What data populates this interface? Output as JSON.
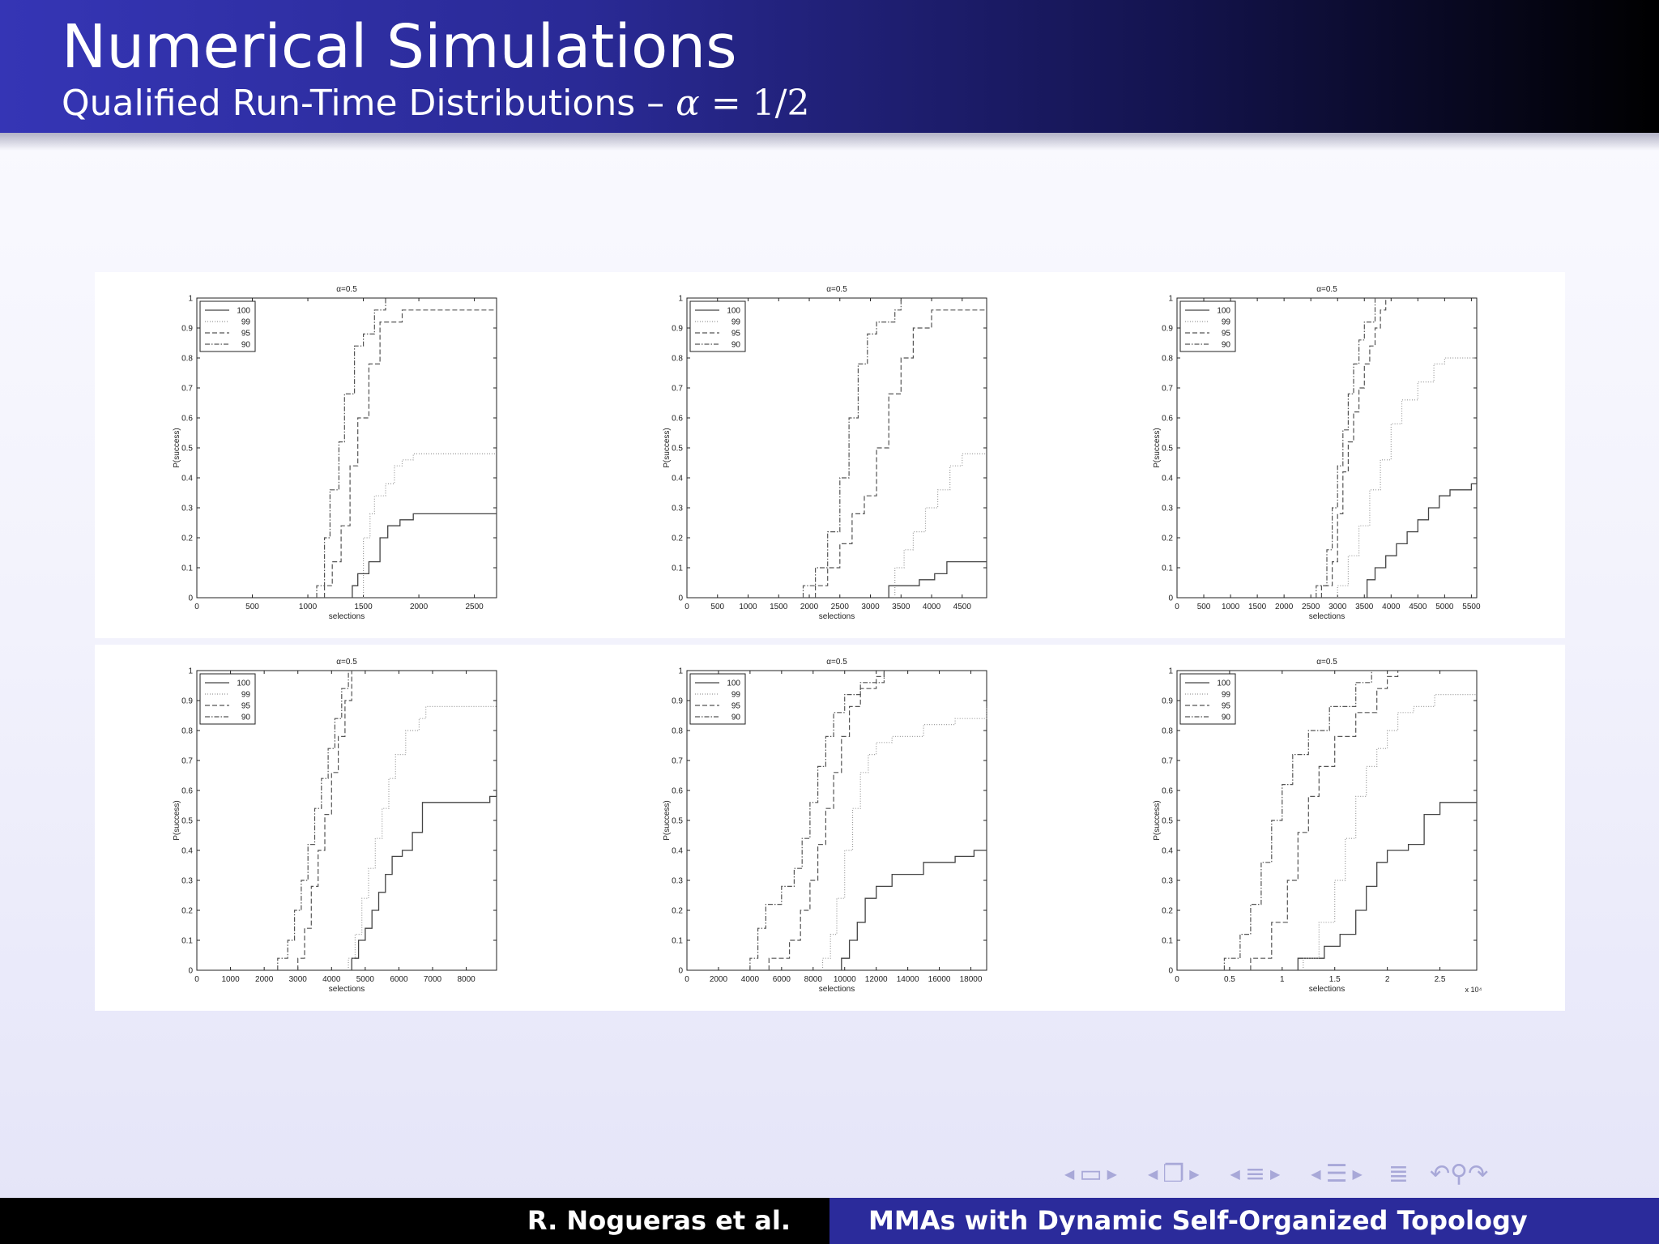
{
  "header": {
    "title": "Numerical Simulations",
    "subtitle_text": "Qualified Run-Time Distributions – ",
    "subtitle_math_symbol": "α",
    "subtitle_math_rest": " = 1/2"
  },
  "footer": {
    "author": "R. Nogueras et al.",
    "talk_title": "MMAs with Dynamic Self-Organized Topology"
  },
  "nav": {
    "icons": [
      "arrow-left-icon",
      "frame-icon",
      "arrow-right-icon",
      "arrow-left-icon",
      "subsection-icon",
      "arrow-right-icon",
      "arrow-left-icon",
      "section-icon",
      "arrow-right-icon",
      "arrow-left-icon",
      "presentation-icon",
      "arrow-right-icon",
      "menu-icon",
      "undo-icon",
      "search-icon",
      "redo-icon"
    ]
  },
  "chart_data": [
    {
      "type": "line",
      "title": "α=0.5",
      "xlabel": "selections",
      "ylabel": "P(success)",
      "xlim": [
        0,
        2700
      ],
      "ylim": [
        0,
        1
      ],
      "xticks": [
        0,
        500,
        1000,
        1500,
        2000,
        2500
      ],
      "yticks": [
        0,
        0.1,
        0.2,
        0.3,
        0.4,
        0.5,
        0.6,
        0.7,
        0.8,
        0.9,
        1
      ],
      "legend": "top-left",
      "grid": false,
      "series": [
        {
          "name": "100",
          "style": "solid",
          "x": [
            1400,
            1450,
            1550,
            1650,
            1720,
            1830,
            1950,
            2700
          ],
          "y": [
            0.04,
            0.08,
            0.12,
            0.2,
            0.24,
            0.26,
            0.28,
            0.28
          ]
        },
        {
          "name": "99",
          "style": "dotted",
          "x": [
            1500,
            1560,
            1600,
            1700,
            1780,
            1850,
            1950,
            2700
          ],
          "y": [
            0.2,
            0.28,
            0.34,
            0.38,
            0.44,
            0.46,
            0.48,
            0.48
          ]
        },
        {
          "name": "95",
          "style": "dashed",
          "x": [
            1150,
            1220,
            1300,
            1380,
            1450,
            1550,
            1650,
            1850,
            2700
          ],
          "y": [
            0.04,
            0.12,
            0.24,
            0.44,
            0.6,
            0.78,
            0.92,
            0.96,
            0.96
          ]
        },
        {
          "name": "90",
          "style": "dashdot",
          "x": [
            1080,
            1150,
            1200,
            1280,
            1330,
            1420,
            1500,
            1600,
            1700
          ],
          "y": [
            0.04,
            0.2,
            0.36,
            0.52,
            0.68,
            0.84,
            0.88,
            0.96,
            1
          ]
        }
      ]
    },
    {
      "type": "line",
      "title": "α=0.5",
      "xlabel": "selections",
      "ylabel": "P(success)",
      "xlim": [
        0,
        4900
      ],
      "ylim": [
        0,
        1
      ],
      "xticks": [
        0,
        500,
        1000,
        1500,
        2000,
        2500,
        3000,
        3500,
        4000,
        4500
      ],
      "yticks": [
        0,
        0.1,
        0.2,
        0.3,
        0.4,
        0.5,
        0.6,
        0.7,
        0.8,
        0.9,
        1
      ],
      "legend": "top-left",
      "grid": false,
      "series": [
        {
          "name": "100",
          "style": "solid",
          "x": [
            3300,
            3800,
            4050,
            4250,
            4900
          ],
          "y": [
            0.04,
            0.06,
            0.08,
            0.12,
            0.12
          ]
        },
        {
          "name": "99",
          "style": "dotted",
          "x": [
            3400,
            3550,
            3700,
            3900,
            4100,
            4300,
            4500,
            4900
          ],
          "y": [
            0.1,
            0.16,
            0.22,
            0.3,
            0.36,
            0.44,
            0.48,
            0.48
          ]
        },
        {
          "name": "95",
          "style": "dashed",
          "x": [
            2100,
            2300,
            2500,
            2700,
            2900,
            3100,
            3300,
            3500,
            3700,
            4000,
            4900
          ],
          "y": [
            0.04,
            0.1,
            0.18,
            0.28,
            0.34,
            0.5,
            0.68,
            0.8,
            0.9,
            0.96,
            0.96
          ]
        },
        {
          "name": "90",
          "style": "dashdot",
          "x": [
            1900,
            2100,
            2300,
            2500,
            2650,
            2800,
            2950,
            3100,
            3400,
            3500
          ],
          "y": [
            0.04,
            0.1,
            0.22,
            0.4,
            0.6,
            0.78,
            0.88,
            0.92,
            0.96,
            1
          ]
        }
      ]
    },
    {
      "type": "line",
      "title": "α=0.5",
      "xlabel": "selections",
      "ylabel": "P(success)",
      "xlim": [
        0,
        5600
      ],
      "ylim": [
        0,
        1
      ],
      "xticks": [
        0,
        500,
        1000,
        1500,
        2000,
        2500,
        3000,
        3500,
        4000,
        4500,
        5000,
        5500
      ],
      "yticks": [
        0,
        0.1,
        0.2,
        0.3,
        0.4,
        0.5,
        0.6,
        0.7,
        0.8,
        0.9,
        1
      ],
      "legend": "top-left",
      "grid": false,
      "series": [
        {
          "name": "100",
          "style": "solid",
          "x": [
            3550,
            3700,
            3900,
            4100,
            4300,
            4500,
            4700,
            4900,
            5100,
            5500,
            5600
          ],
          "y": [
            0.06,
            0.1,
            0.14,
            0.18,
            0.22,
            0.26,
            0.3,
            0.34,
            0.36,
            0.38,
            0.4
          ]
        },
        {
          "name": "99",
          "style": "dotted",
          "x": [
            3000,
            3200,
            3400,
            3600,
            3800,
            4000,
            4200,
            4500,
            4800,
            5000,
            5600
          ],
          "y": [
            0.04,
            0.14,
            0.24,
            0.36,
            0.46,
            0.58,
            0.66,
            0.72,
            0.78,
            0.8,
            0.8
          ]
        },
        {
          "name": "95",
          "style": "dashed",
          "x": [
            2700,
            2900,
            3000,
            3100,
            3200,
            3300,
            3400,
            3500,
            3600,
            3700,
            3800,
            3900
          ],
          "y": [
            0.04,
            0.12,
            0.28,
            0.42,
            0.52,
            0.62,
            0.7,
            0.78,
            0.84,
            0.9,
            0.96,
            1
          ]
        },
        {
          "name": "90",
          "style": "dashdot",
          "x": [
            2600,
            2800,
            2900,
            3000,
            3100,
            3200,
            3300,
            3400,
            3500,
            3700
          ],
          "y": [
            0.04,
            0.16,
            0.3,
            0.44,
            0.56,
            0.68,
            0.78,
            0.86,
            0.92,
            1
          ]
        }
      ]
    },
    {
      "type": "line",
      "title": "α=0.5",
      "xlabel": "selections",
      "ylabel": "P(success)",
      "xlim": [
        0,
        8900
      ],
      "ylim": [
        0,
        1
      ],
      "xticks": [
        0,
        1000,
        2000,
        3000,
        4000,
        5000,
        6000,
        7000,
        8000
      ],
      "yticks": [
        0,
        0.1,
        0.2,
        0.3,
        0.4,
        0.5,
        0.6,
        0.7,
        0.8,
        0.9,
        1
      ],
      "legend": "top-left",
      "grid": false,
      "series": [
        {
          "name": "100",
          "style": "solid",
          "x": [
            4600,
            4800,
            5000,
            5200,
            5400,
            5600,
            5800,
            6100,
            6400,
            6700,
            7600,
            8700,
            8900
          ],
          "y": [
            0.04,
            0.1,
            0.14,
            0.2,
            0.26,
            0.32,
            0.38,
            0.4,
            0.46,
            0.56,
            0.56,
            0.58,
            0.6
          ]
        },
        {
          "name": "99",
          "style": "dotted",
          "x": [
            4500,
            4700,
            4900,
            5100,
            5300,
            5500,
            5700,
            5900,
            6200,
            6600,
            6800,
            8900
          ],
          "y": [
            0.04,
            0.12,
            0.24,
            0.34,
            0.44,
            0.54,
            0.64,
            0.72,
            0.8,
            0.84,
            0.88,
            0.88
          ]
        },
        {
          "name": "95",
          "style": "dashed",
          "x": [
            3000,
            3200,
            3400,
            3600,
            3800,
            4000,
            4200,
            4400,
            4600
          ],
          "y": [
            0.04,
            0.14,
            0.28,
            0.4,
            0.52,
            0.66,
            0.78,
            0.9,
            1
          ]
        },
        {
          "name": "90",
          "style": "dashdot",
          "x": [
            2400,
            2700,
            2900,
            3100,
            3300,
            3500,
            3700,
            3900,
            4100,
            4300,
            4500
          ],
          "y": [
            0.04,
            0.1,
            0.2,
            0.3,
            0.42,
            0.54,
            0.64,
            0.74,
            0.84,
            0.94,
            1
          ]
        }
      ]
    },
    {
      "type": "line",
      "title": "α=0.5",
      "xlabel": "selections",
      "ylabel": "P(success)",
      "xlim": [
        0,
        19000
      ],
      "ylim": [
        0,
        1
      ],
      "xticks": [
        0,
        2000,
        4000,
        6000,
        8000,
        10000,
        12000,
        14000,
        16000,
        18000
      ],
      "yticks": [
        0,
        0.1,
        0.2,
        0.3,
        0.4,
        0.5,
        0.6,
        0.7,
        0.8,
        0.9,
        1
      ],
      "legend": "top-left",
      "grid": false,
      "series": [
        {
          "name": "100",
          "style": "solid",
          "x": [
            9800,
            10300,
            10800,
            11300,
            12000,
            13000,
            15000,
            17000,
            18200,
            19000
          ],
          "y": [
            0.04,
            0.1,
            0.16,
            0.24,
            0.28,
            0.32,
            0.36,
            0.38,
            0.4,
            0.4
          ]
        },
        {
          "name": "99",
          "style": "dotted",
          "x": [
            8600,
            9100,
            9500,
            10000,
            10500,
            11000,
            11500,
            12000,
            13000,
            15000,
            17000,
            19000
          ],
          "y": [
            0.04,
            0.12,
            0.24,
            0.4,
            0.54,
            0.66,
            0.72,
            0.76,
            0.78,
            0.82,
            0.84,
            0.88
          ]
        },
        {
          "name": "95",
          "style": "dashed",
          "x": [
            5200,
            6500,
            7200,
            7800,
            8300,
            8800,
            9300,
            9800,
            10300,
            11000,
            12000,
            12500
          ],
          "y": [
            0.04,
            0.1,
            0.2,
            0.3,
            0.42,
            0.54,
            0.66,
            0.78,
            0.88,
            0.94,
            0.98,
            1
          ]
        },
        {
          "name": "90",
          "style": "dashdot",
          "x": [
            4000,
            4500,
            5000,
            6000,
            6800,
            7300,
            7800,
            8300,
            8800,
            9300,
            10000,
            11000,
            12500
          ],
          "y": [
            0.04,
            0.14,
            0.22,
            0.28,
            0.34,
            0.44,
            0.56,
            0.68,
            0.78,
            0.86,
            0.92,
            0.96,
            1
          ]
        }
      ]
    },
    {
      "type": "line",
      "title": "α=0.5",
      "xlabel": "selections",
      "ylabel": "P(success)",
      "xlim": [
        0,
        28500
      ],
      "ylim": [
        0,
        1
      ],
      "xticks": [
        0,
        5000,
        10000,
        15000,
        20000,
        25000
      ],
      "xtick_labels": [
        "0",
        "0.5",
        "1",
        "1.5",
        "2",
        "2.5"
      ],
      "x_multiplier": "x 10⁴",
      "yticks": [
        0,
        0.1,
        0.2,
        0.3,
        0.4,
        0.5,
        0.6,
        0.7,
        0.8,
        0.9,
        1
      ],
      "legend": "top-left",
      "grid": false,
      "series": [
        {
          "name": "100",
          "style": "solid",
          "x": [
            11500,
            14000,
            15500,
            17000,
            18000,
            19000,
            20000,
            22000,
            23500,
            25000,
            28500
          ],
          "y": [
            0.04,
            0.08,
            0.12,
            0.2,
            0.28,
            0.36,
            0.4,
            0.42,
            0.52,
            0.56,
            0.56
          ]
        },
        {
          "name": "99",
          "style": "dotted",
          "x": [
            12000,
            13500,
            15000,
            16000,
            17000,
            18000,
            19000,
            20000,
            21000,
            22500,
            24500,
            28500
          ],
          "y": [
            0.04,
            0.16,
            0.3,
            0.44,
            0.58,
            0.68,
            0.74,
            0.8,
            0.86,
            0.88,
            0.92,
            0.92
          ]
        },
        {
          "name": "95",
          "style": "dashed",
          "x": [
            7000,
            9000,
            10500,
            11500,
            12500,
            13500,
            15000,
            17000,
            19000,
            20000,
            21000
          ],
          "y": [
            0.04,
            0.16,
            0.3,
            0.46,
            0.58,
            0.68,
            0.78,
            0.86,
            0.94,
            0.98,
            1
          ]
        },
        {
          "name": "90",
          "style": "dashdot",
          "x": [
            4500,
            6000,
            7000,
            8000,
            9000,
            10000,
            11000,
            12500,
            14500,
            17000,
            18500
          ],
          "y": [
            0.04,
            0.12,
            0.22,
            0.36,
            0.5,
            0.62,
            0.72,
            0.8,
            0.88,
            0.96,
            1
          ]
        }
      ]
    }
  ]
}
